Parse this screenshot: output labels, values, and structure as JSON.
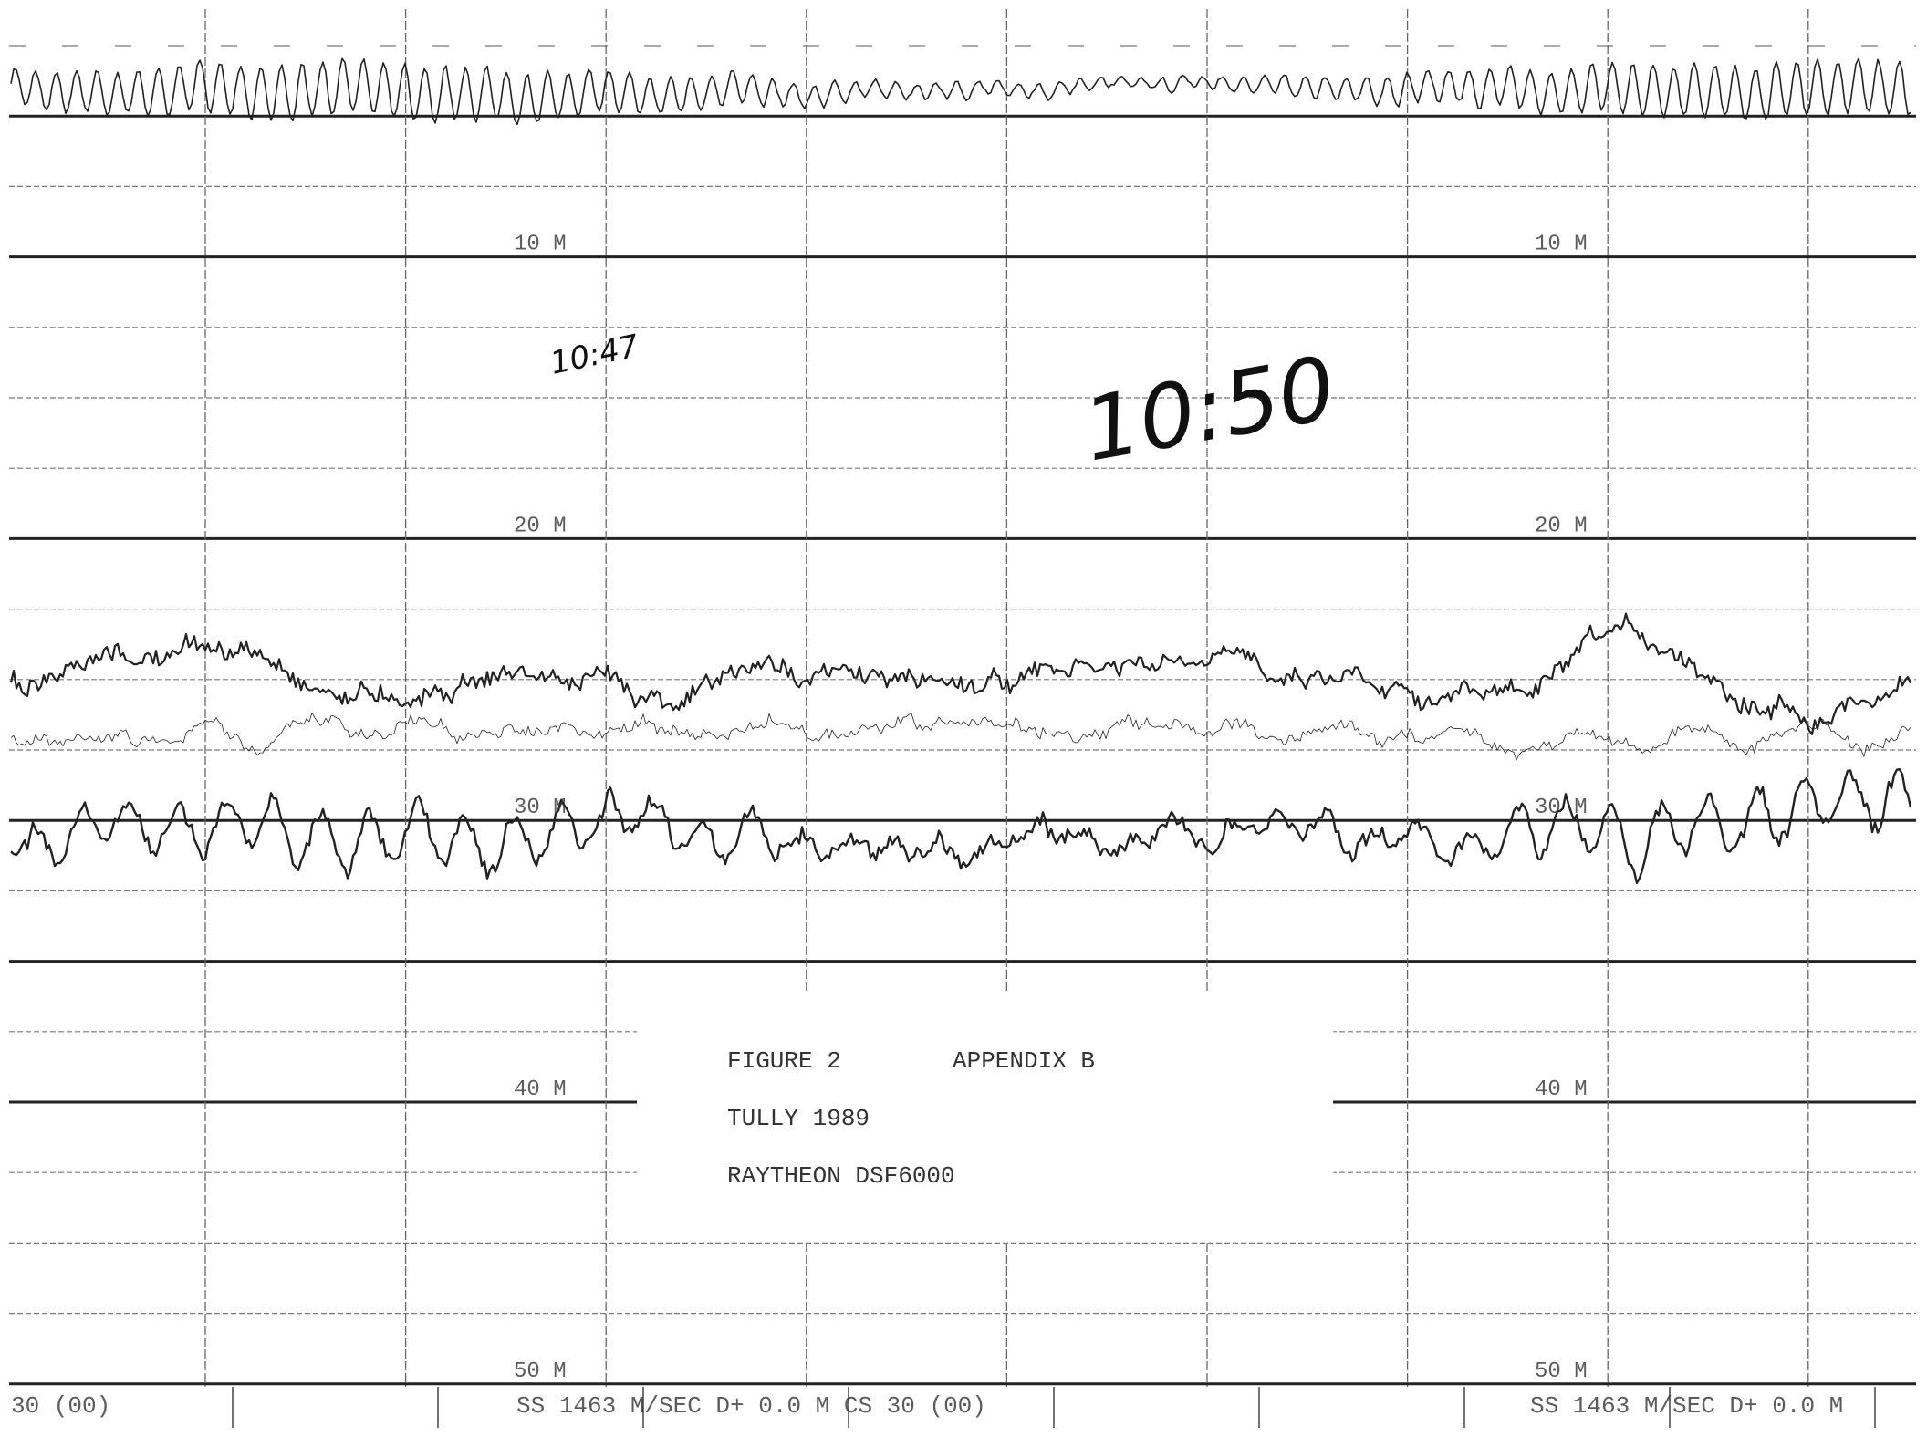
{
  "depth_labels_left": [
    "10 M",
    "20 M",
    "30 M",
    "40 M",
    "50 M"
  ],
  "depth_labels_right": [
    "10 M",
    "20 M",
    "30 M",
    "40 M",
    "50 M"
  ],
  "annotations": {
    "time_1": "10:47",
    "time_2": "10:50"
  },
  "caption": {
    "figure": "FIGURE 2",
    "appendix": "APPENDIX B",
    "author": "TULLY 1989",
    "instrument": "RAYTHEON DSF6000"
  },
  "footer": {
    "left": "30 (00)",
    "middle": "SS 1463 M/SEC D+ 0.0 M CS 30 (00)",
    "right": "SS 1463 M/SEC D+ 0.0 M"
  }
}
